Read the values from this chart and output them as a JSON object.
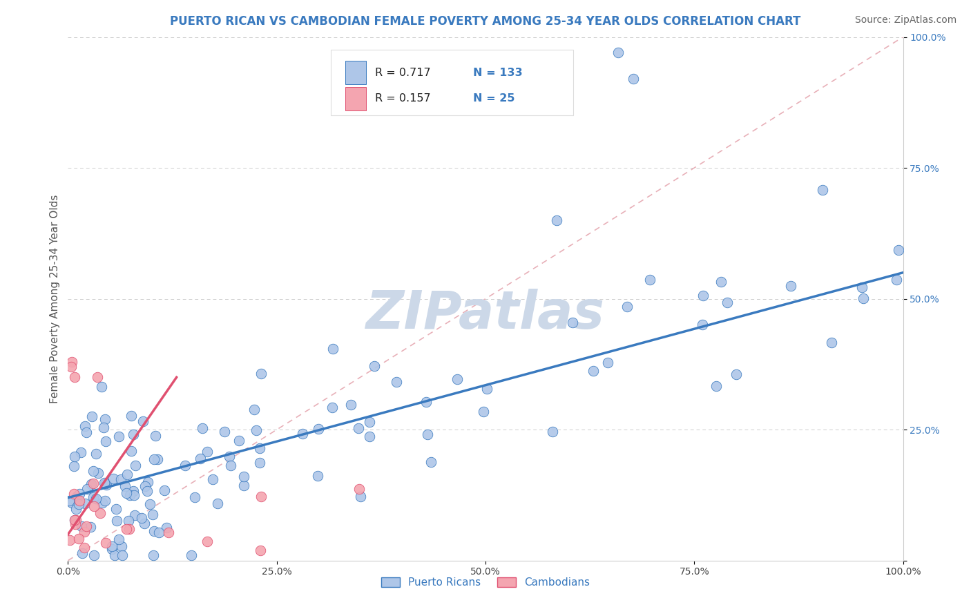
{
  "title": "PUERTO RICAN VS CAMBODIAN FEMALE POVERTY AMONG 25-34 YEAR OLDS CORRELATION CHART",
  "source": "Source: ZipAtlas.com",
  "ylabel": "Female Poverty Among 25-34 Year Olds",
  "watermark": "ZIPatlas",
  "xlim": [
    0,
    1.0
  ],
  "ylim": [
    0,
    1.0
  ],
  "xticklabels": [
    "0.0%",
    "25.0%",
    "50.0%",
    "75.0%",
    "100.0%"
  ],
  "yticklabels": [
    "25.0%",
    "50.0%",
    "75.0%",
    "100.0%"
  ],
  "puerto_rican_color": "#aec6e8",
  "cambodian_color": "#f4a5b0",
  "pr_line_color": "#3a7abf",
  "cam_line_color": "#e05070",
  "diagonal_color": "#e8b0b8",
  "grid_color": "#cccccc",
  "R_pr": "0.717",
  "N_pr": "133",
  "R_cam": "0.157",
  "N_cam": "25",
  "legend_label_pr": "Puerto Ricans",
  "legend_label_cam": "Cambodians",
  "title_color": "#3a7abf",
  "tick_color": "#3a7abf",
  "title_fontsize": 12,
  "axis_label_fontsize": 11,
  "tick_fontsize": 10,
  "source_fontsize": 10,
  "watermark_color": "#ccd8e8",
  "watermark_fontsize": 55,
  "background_color": "#ffffff"
}
